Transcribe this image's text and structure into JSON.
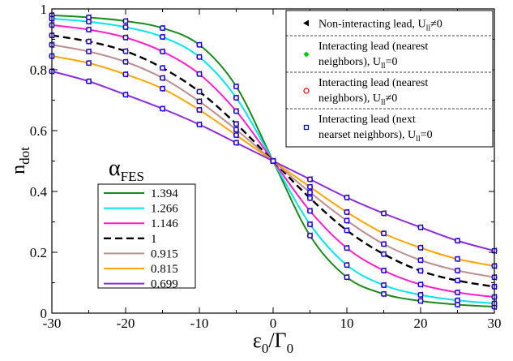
{
  "chart_data": {
    "type": "line",
    "xlabel": {
      "main": "ε",
      "sub1": "0",
      "slash": "/Γ",
      "sub2": "0"
    },
    "ylabel": {
      "main": "n",
      "sub": "dot"
    },
    "xlim": [
      -30,
      30
    ],
    "ylim": [
      0,
      1
    ],
    "xticks": [
      -30,
      -20,
      -10,
      0,
      10,
      20,
      30
    ],
    "xtick_labels": [
      "-30",
      "-20",
      "-10",
      "0",
      "10",
      "20",
      "30"
    ],
    "yticks": [
      0,
      0.2,
      0.4,
      0.6,
      0.8,
      1
    ],
    "ytick_labels": [
      "0",
      "0.2",
      "0.4",
      "0.6",
      "0.8",
      "1"
    ],
    "legend_title": {
      "main": "α",
      "sub": "FES"
    },
    "legend_placement": "lower-left",
    "marker_legend_placement": "top-right",
    "marker_x": [
      -30,
      -25,
      -20,
      -15,
      -10,
      -5,
      0,
      5,
      10,
      15,
      20,
      25,
      30
    ],
    "series": [
      {
        "name": "1.394",
        "color": "#1a8a1a",
        "dash": "solid",
        "x": [
          -30,
          -25,
          -20,
          -15,
          -10,
          -5,
          0,
          5,
          10,
          15,
          20,
          25,
          30
        ],
        "y": [
          0.979,
          0.972,
          0.96,
          0.937,
          0.882,
          0.745,
          0.5,
          0.255,
          0.118,
          0.063,
          0.04,
          0.028,
          0.021
        ]
      },
      {
        "name": "1.266",
        "color": "#00e5ee",
        "dash": "solid",
        "x": [
          -30,
          -25,
          -20,
          -15,
          -10,
          -5,
          0,
          5,
          10,
          15,
          20,
          25,
          30
        ],
        "y": [
          0.968,
          0.958,
          0.94,
          0.908,
          0.842,
          0.708,
          0.5,
          0.292,
          0.158,
          0.092,
          0.06,
          0.042,
          0.032
        ]
      },
      {
        "name": "1.146",
        "color": "#ff1ecc",
        "dash": "solid",
        "x": [
          -30,
          -25,
          -20,
          -15,
          -10,
          -5,
          0,
          5,
          10,
          15,
          20,
          25,
          30
        ],
        "y": [
          0.947,
          0.932,
          0.906,
          0.86,
          0.786,
          0.664,
          0.5,
          0.336,
          0.214,
          0.14,
          0.094,
          0.068,
          0.053
        ]
      },
      {
        "name": "1",
        "color": "#000000",
        "dash": "dashed",
        "x": [
          -30,
          -25,
          -20,
          -15,
          -10,
          -5,
          0,
          5,
          10,
          15,
          20,
          25,
          30
        ],
        "y": [
          0.913,
          0.893,
          0.861,
          0.806,
          0.728,
          0.622,
          0.5,
          0.378,
          0.272,
          0.194,
          0.139,
          0.107,
          0.087
        ]
      },
      {
        "name": "0.915",
        "color": "#bc8f8f",
        "dash": "solid",
        "x": [
          -30,
          -25,
          -20,
          -15,
          -10,
          -5,
          0,
          5,
          10,
          15,
          20,
          25,
          30
        ],
        "y": [
          0.882,
          0.86,
          0.826,
          0.773,
          0.696,
          0.603,
          0.5,
          0.397,
          0.304,
          0.227,
          0.174,
          0.14,
          0.118
        ]
      },
      {
        "name": "0.815",
        "color": "#ffa500",
        "dash": "solid",
        "x": [
          -30,
          -25,
          -20,
          -15,
          -10,
          -5,
          0,
          5,
          10,
          15,
          20,
          25,
          30
        ],
        "y": [
          0.845,
          0.822,
          0.785,
          0.738,
          0.668,
          0.585,
          0.5,
          0.415,
          0.332,
          0.262,
          0.215,
          0.178,
          0.155
        ]
      },
      {
        "name": "0.699",
        "color": "#8b2be2",
        "dash": "solid",
        "x": [
          -30,
          -25,
          -20,
          -15,
          -10,
          -5,
          0,
          5,
          10,
          15,
          20,
          25,
          30
        ],
        "y": [
          0.795,
          0.762,
          0.718,
          0.672,
          0.62,
          0.56,
          0.5,
          0.44,
          0.38,
          0.328,
          0.282,
          0.238,
          0.205
        ]
      }
    ],
    "marker_legend": [
      {
        "symbol": "triangle-left",
        "color": "#000000",
        "text": "Non-interacting lead, U",
        "sub": "ll",
        "tail": "≠0"
      },
      {
        "symbol": "diamond",
        "color": "#00cc00",
        "text": "Interacting lead (nearest",
        "line2": "neighbors), U",
        "sub": "ll",
        "tail": "=0"
      },
      {
        "symbol": "circle",
        "color": "#ff0000",
        "text": "Interacting lead (nearest",
        "line2": "neighbors), U",
        "sub": "ll",
        "tail": "≠0"
      },
      {
        "symbol": "square",
        "color": "#0000ff",
        "text": "Interacting lead (next",
        "line2": "nearset neighbors), U",
        "sub": "ll",
        "tail": "=0"
      }
    ]
  }
}
